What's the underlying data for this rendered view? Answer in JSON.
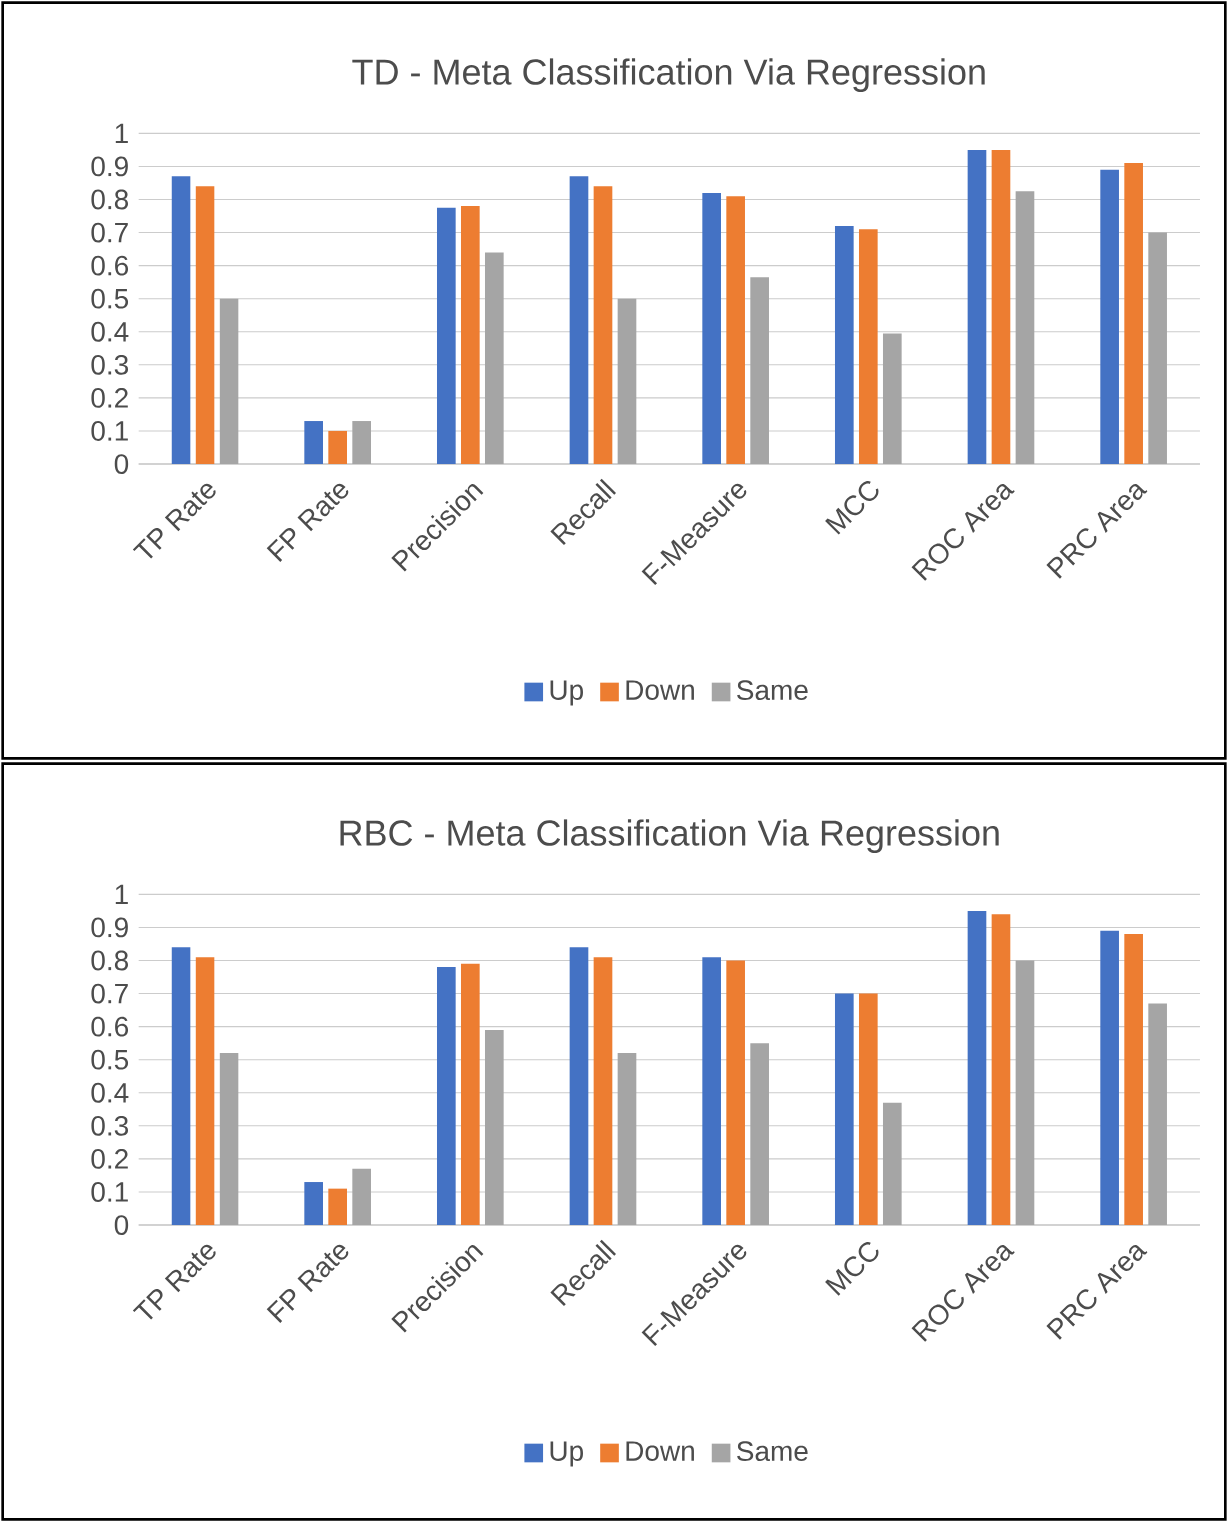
{
  "chart_data": [
    {
      "type": "bar",
      "title": "TD - Meta Classification Via Regression",
      "categories": [
        "TP Rate",
        "FP Rate",
        "Precision",
        "Recall",
        "F-Measure",
        "MCC",
        "ROC Area",
        "PRC Area"
      ],
      "series": [
        {
          "name": "Up",
          "color": "#4472c4",
          "values": [
            0.87,
            0.13,
            0.775,
            0.87,
            0.82,
            0.72,
            0.95,
            0.89
          ]
        },
        {
          "name": "Down",
          "color": "#ed7d31",
          "values": [
            0.84,
            0.1,
            0.78,
            0.84,
            0.81,
            0.71,
            0.95,
            0.91
          ]
        },
        {
          "name": "Same",
          "color": "#a5a5a5",
          "values": [
            0.5,
            0.13,
            0.64,
            0.5,
            0.565,
            0.395,
            0.825,
            0.7
          ]
        }
      ],
      "ylim": [
        0,
        1
      ],
      "yticks": [
        0,
        0.1,
        0.2,
        0.3,
        0.4,
        0.5,
        0.6,
        0.7,
        0.8,
        0.9,
        1
      ],
      "grid": "y",
      "legend": "bottom"
    },
    {
      "type": "bar",
      "title": "RBC - Meta Classification Via Regression",
      "categories": [
        "TP Rate",
        "FP Rate",
        "Precision",
        "Recall",
        "F-Measure",
        "MCC",
        "ROC Area",
        "PRC Area"
      ],
      "series": [
        {
          "name": "Up",
          "color": "#4472c4",
          "values": [
            0.84,
            0.13,
            0.78,
            0.84,
            0.81,
            0.7,
            0.95,
            0.89
          ]
        },
        {
          "name": "Down",
          "color": "#ed7d31",
          "values": [
            0.81,
            0.11,
            0.79,
            0.81,
            0.8,
            0.7,
            0.94,
            0.88
          ]
        },
        {
          "name": "Same",
          "color": "#a5a5a5",
          "values": [
            0.52,
            0.17,
            0.59,
            0.52,
            0.55,
            0.37,
            0.8,
            0.67
          ]
        }
      ],
      "ylim": [
        0,
        1
      ],
      "yticks": [
        0,
        0.1,
        0.2,
        0.3,
        0.4,
        0.5,
        0.6,
        0.7,
        0.8,
        0.9,
        1
      ],
      "grid": "y",
      "legend": "bottom"
    }
  ]
}
